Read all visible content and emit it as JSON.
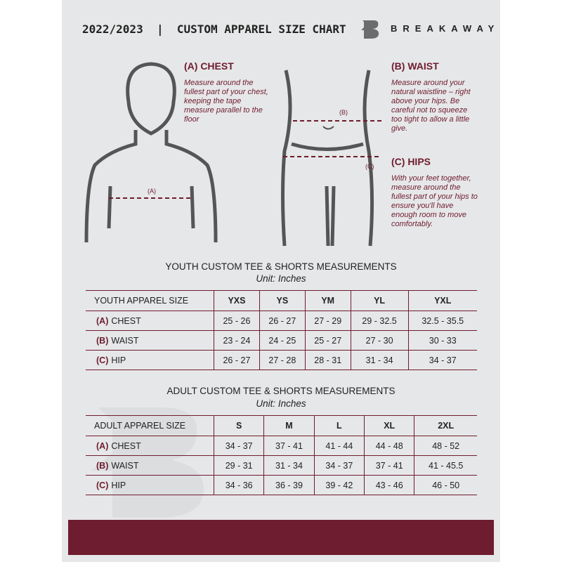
{
  "header": {
    "title": "2022/2023  |  CUSTOM APPAREL SIZE CHART",
    "brand": "BREAKAWAY"
  },
  "chest": {
    "heading": "(A) CHEST",
    "text": "Measure around the fullest part of your chest, keeping the tape measure parallel to the floor",
    "marker": "(A)"
  },
  "waist": {
    "heading": "(B) WAIST",
    "text": "Measure around your natural waistline – right above your hips. Be careful not to squeeze too tight to allow a little give.",
    "marker": "(B)"
  },
  "hips": {
    "heading": "(C) HIPS",
    "text": "With your feet together, measure around the fullest part of your hips to ensure you'll have enough room to move comfortably.",
    "marker": "(C)"
  },
  "accent": "#6e1c2f",
  "youth": {
    "title": "YOUTH CUSTOM TEE & SHORTS MEASUREMENTS",
    "unit": "Unit: Inches",
    "size_label": "YOUTH APPAREL SIZE",
    "sizes": [
      "YXS",
      "YS",
      "YM",
      "YL",
      "YXL"
    ],
    "rows": [
      {
        "code": "(A)",
        "name": "CHEST",
        "values": [
          "25 - 26",
          "26 - 27",
          "27 - 29",
          "29 - 32.5",
          "32.5 - 35.5"
        ]
      },
      {
        "code": "(B)",
        "name": "WAIST",
        "values": [
          "23 - 24",
          "24 - 25",
          "25 - 27",
          "27 - 30",
          "30 - 33"
        ]
      },
      {
        "code": "(C)",
        "name": "HIP",
        "values": [
          "26 - 27",
          "27 - 28",
          "28 - 31",
          "31 - 34",
          "34 - 37"
        ]
      }
    ]
  },
  "adult": {
    "title": "ADULT CUSTOM TEE & SHORTS MEASUREMENTS",
    "unit": "Unit: Inches",
    "size_label": "ADULT APPAREL SIZE",
    "sizes": [
      "S",
      "M",
      "L",
      "XL",
      "2XL"
    ],
    "rows": [
      {
        "code": "(A)",
        "name": "CHEST",
        "values": [
          "34 - 37",
          "37 - 41",
          "41 - 44",
          "44 - 48",
          "48 - 52"
        ]
      },
      {
        "code": "(B)",
        "name": "WAIST",
        "values": [
          "29 - 31",
          "31 - 34",
          "34 - 37",
          "37 - 41",
          "41 - 45.5"
        ]
      },
      {
        "code": "(C)",
        "name": "HIP",
        "values": [
          "34 - 36",
          "36 - 39",
          "39 - 42",
          "43 - 46",
          "46 - 50"
        ]
      }
    ]
  }
}
